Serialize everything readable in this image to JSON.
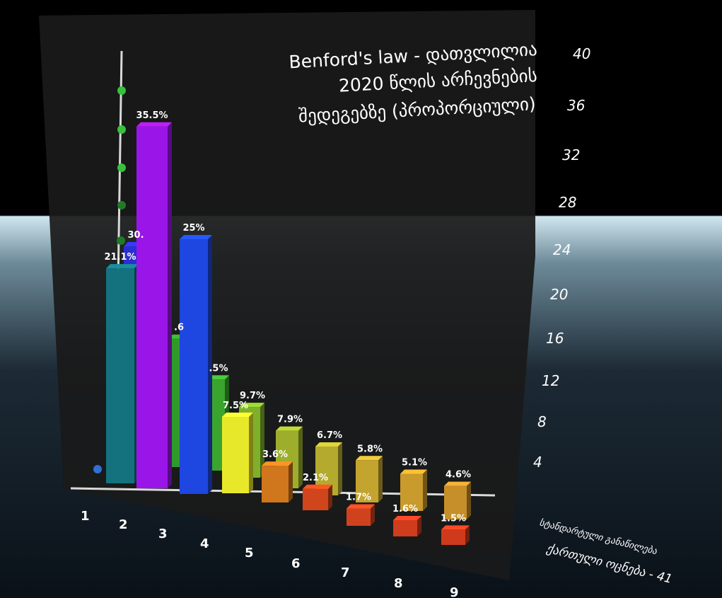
{
  "chart_data": {
    "type": "bar",
    "title_lines": [
      "Benford's law - დათვლილია",
      "2020 წლის არჩევნების",
      "შედეგებზე (პროპორციული)"
    ],
    "categories": [
      "1",
      "2",
      "3",
      "4",
      "5",
      "6",
      "7",
      "8",
      "9"
    ],
    "yticks": [
      "4",
      "8",
      "12",
      "16",
      "20",
      "24",
      "28",
      "32",
      "36",
      "40"
    ],
    "ylim": [
      0,
      40
    ],
    "series": [
      {
        "name": "სტანდარტული განაწილება",
        "values": [
          30.1,
          17.6,
          12.5,
          9.7,
          7.9,
          6.7,
          5.8,
          5.1,
          4.6
        ],
        "labels": [
          "30.",
          ".6",
          ".5%",
          "9.7%",
          "7.9%",
          "6.7%",
          "5.8%",
          "5.1%",
          "4.6%"
        ],
        "colors": [
          "#2a2fd0",
          "#2f9a2a",
          "#3aa52e",
          "#7fb02a",
          "#9cae2c",
          "#b4aa2e",
          "#c3a42e",
          "#c99a2c",
          "#c68f2a"
        ]
      },
      {
        "name": "ქართული ოცნება - 41",
        "values": [
          21.1,
          35.5,
          25.0,
          7.5,
          3.6,
          2.1,
          1.7,
          1.6,
          1.5
        ],
        "labels": [
          "21.1%",
          "35.5%",
          "25%",
          "7.5%",
          "3.6%",
          "2.1%",
          "1.7%",
          "1.6%",
          "1.5%"
        ],
        "colors": [
          "#13727e",
          "#9a16e8",
          "#1e46e0",
          "#e8e82a",
          "#d0761c",
          "#d0451c",
          "#d0421e",
          "#cf3c1e",
          "#d03a1c"
        ]
      }
    ],
    "legend": [
      "სტანდარტული განაწილება",
      "ქართული ოცნება - 41"
    ]
  }
}
